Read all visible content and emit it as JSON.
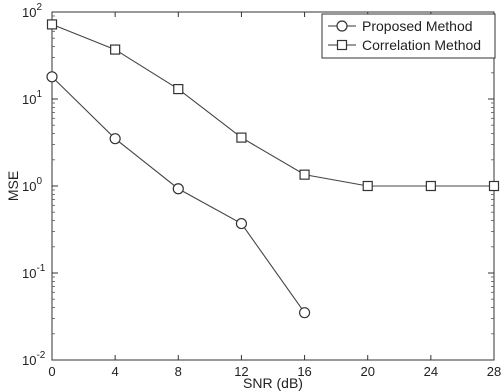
{
  "chart_data": {
    "type": "line",
    "title": "",
    "xlabel": "SNR (dB)",
    "ylabel": "MSE",
    "x_ticks": [
      "0",
      "4",
      "8",
      "12",
      "16",
      "20",
      "24",
      "28"
    ],
    "y_ticks": [
      {
        "base": "10",
        "exp": "2"
      },
      {
        "base": "10",
        "exp": "1"
      },
      {
        "base": "10",
        "exp": "0"
      },
      {
        "base": "10",
        "exp": "-1"
      },
      {
        "base": "10",
        "exp": "-2"
      }
    ],
    "xlim": [
      0,
      28
    ],
    "ylim": [
      0.01,
      100
    ],
    "yscale": "log",
    "grid": false,
    "legend_position": "top-right",
    "series": [
      {
        "name": "Proposed Method",
        "marker": "circle",
        "x": [
          0,
          4,
          8,
          12,
          16
        ],
        "values": [
          18,
          3.5,
          0.93,
          0.37,
          0.035
        ]
      },
      {
        "name": "Correlation Method",
        "marker": "square",
        "x": [
          0,
          4,
          8,
          12,
          16,
          20,
          24,
          28
        ],
        "values": [
          72,
          37,
          13,
          3.6,
          1.35,
          1.0,
          1.0,
          1.0
        ]
      }
    ]
  }
}
